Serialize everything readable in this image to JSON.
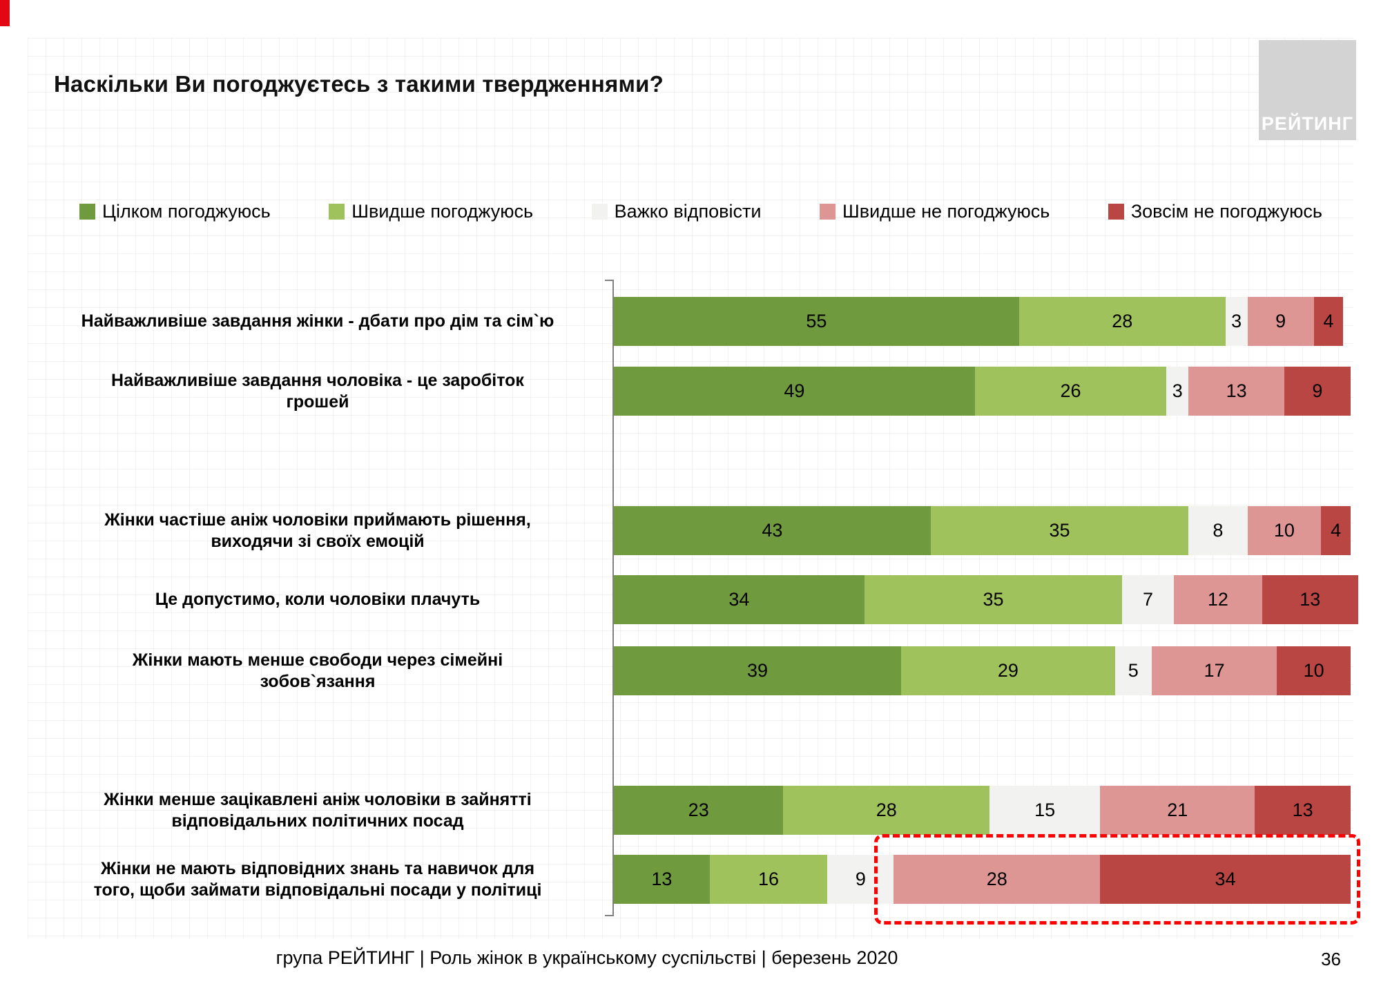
{
  "page": {
    "title": "Наскільки Ви погоджуєтесь з такими твердженнями?",
    "logo_text": "РЕЙТИНГ",
    "footer": "група РЕЙТИНГ | Роль жінок в українському суспільстві | березень 2020",
    "page_number": "36"
  },
  "chart_data": {
    "type": "bar",
    "orientation": "horizontal",
    "stacked": true,
    "xlim": [
      0,
      100
    ],
    "grid": true,
    "legend_position": "top",
    "legend": [
      "Цілком погоджуюсь",
      "Швидше погоджуюсь",
      "Важко відповісти",
      "Швидше не погоджуюсь",
      "Зовсім не погоджуюсь"
    ],
    "colors": [
      "#6f9a3d",
      "#a0c25c",
      "#f2f2f0",
      "#dd9694",
      "#b94642"
    ],
    "categories": [
      "Найважливіше завдання жінки - дбати про дім та сім`ю",
      "Найважливіше завдання чоловіка - це заробіток\nгрошей",
      "Жінки частіше аніж чоловіки приймають рішення,\nвиходячи зі своїх емоцій",
      "Це допустимо, коли чоловіки плачуть",
      "Жінки мають менше свободи через сімейні\nзобов`язання",
      "Жінки менше зацікавлені аніж чоловіки в зайнятті\nвідповідальних політичних посад",
      "Жінки не мають відповідних знань та навичок для\nтого, щоби займати відповідальні посади у політиці"
    ],
    "series": [
      {
        "name": "Цілком погоджуюсь",
        "values": [
          55,
          49,
          43,
          34,
          39,
          23,
          13
        ]
      },
      {
        "name": "Швидше погоджуюсь",
        "values": [
          28,
          26,
          35,
          35,
          29,
          28,
          16
        ]
      },
      {
        "name": "Важко відповісти",
        "values": [
          3,
          3,
          8,
          7,
          5,
          15,
          9
        ]
      },
      {
        "name": "Швидше не погоджуюсь",
        "values": [
          9,
          13,
          10,
          12,
          17,
          21,
          28
        ]
      },
      {
        "name": "Зовсім не погоджуюсь",
        "values": [
          4,
          9,
          4,
          13,
          10,
          13,
          34
        ]
      }
    ],
    "row_groups": [
      [
        0,
        1
      ],
      [
        2,
        3,
        4
      ],
      [
        5,
        6
      ]
    ],
    "highlight": {
      "row_index": 6,
      "from_segment_index": 3,
      "color": "#ff0000",
      "description": "red dashed box around last two segments of bottom row"
    }
  }
}
